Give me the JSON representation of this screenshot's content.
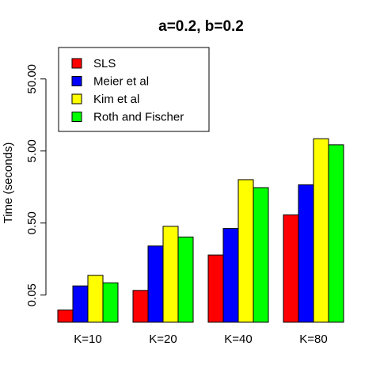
{
  "chart_data": {
    "type": "bar",
    "title": "a=0.2, b=0.2",
    "ylabel": "Time (seconds)",
    "xlabel": "",
    "y_scale": "log",
    "ylim": [
      0.021,
      130
    ],
    "y_ticks": [
      {
        "value": 0.05,
        "label": "0.05"
      },
      {
        "value": 0.5,
        "label": "0.50"
      },
      {
        "value": 5,
        "label": "5.00"
      },
      {
        "value": 50,
        "label": "50.00"
      }
    ],
    "categories": [
      "K=10",
      "K=20",
      "K=40",
      "K=80"
    ],
    "series": [
      {
        "name": "SLS",
        "color": "#ff0000",
        "values": [
          0.031,
          0.058,
          0.18,
          0.65
        ]
      },
      {
        "name": "Meier et al",
        "color": "#0000ff",
        "values": [
          0.067,
          0.24,
          0.42,
          1.7
        ]
      },
      {
        "name": "Kim et al",
        "color": "#ffff00",
        "values": [
          0.094,
          0.45,
          2.0,
          7.4
        ]
      },
      {
        "name": "Roth and Fischer",
        "color": "#00ff00",
        "values": [
          0.074,
          0.32,
          1.55,
          6.1
        ]
      }
    ],
    "legend_position": "top-left"
  }
}
